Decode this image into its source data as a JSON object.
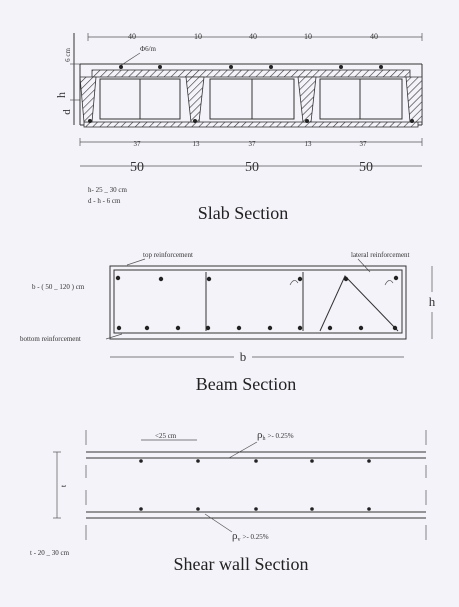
{
  "slab": {
    "top_dims": [
      "40",
      "10",
      "40",
      "10",
      "40"
    ],
    "rebar_label": "Φ6/m",
    "side_dim_top": "6 cm",
    "side_h": "h",
    "side_d": "d",
    "bottom_dims": [
      "37",
      "13",
      "37",
      "13",
      "37"
    ],
    "module_dims": [
      "50",
      "50",
      "50"
    ],
    "note_h": "h- 25 _ 30 cm",
    "note_d": "d - h - 6  cm",
    "title": "Slab Section"
  },
  "beam": {
    "top_reinf": "top reinforcement",
    "lateral_reinf": "lateral reinforcement",
    "width_note": "b - ( 50 _ 120 ) cm",
    "bottom_reinf": "bottom reinforcement",
    "h_label": "h",
    "b_label": "b",
    "title": "Beam Section"
  },
  "wall": {
    "spacing": "<25 cm",
    "rho_top": "ρ",
    "rho_top_sub": "h",
    "rho_top_val": ">- 0.25%",
    "rho_bot": "ρ",
    "rho_bot_sub": "v",
    "rho_bot_val": ">- 0.25%",
    "t_side": "t",
    "t_note": "t - 20 _ 30 cm",
    "title": "Shear wall Section"
  }
}
